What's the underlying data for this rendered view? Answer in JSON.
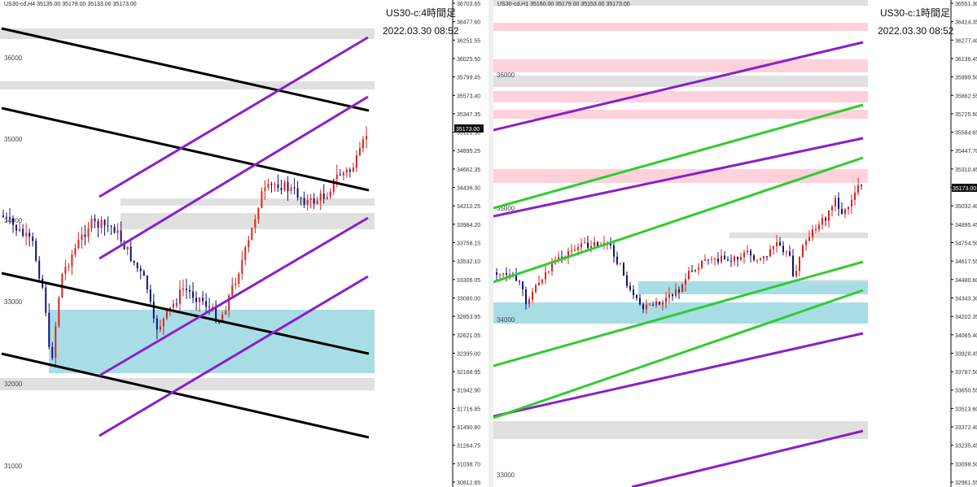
{
  "left": {
    "symbol_header": "US30-cd,H4  35135.00 35179.00 35133.00 35173.00",
    "title": "US30-c:4時間足",
    "timestamp": "2022.03.30 08:52",
    "bid_label": "35173.00",
    "y_axis_ticks": [
      "36703.65",
      "36477.60",
      "36251.55",
      "36025.50",
      "35799.45",
      "35573.40",
      "35347.35",
      "35121.30",
      "34895.25",
      "34662.35",
      "34436.30",
      "34210.25",
      "33984.20",
      "33758.15",
      "33532.10",
      "33306.05",
      "33080.00",
      "32853.95",
      "32621.05",
      "32395.00",
      "32168.95",
      "31942.90",
      "31716.85",
      "31490.80",
      "31264.75",
      "31038.70",
      "30812.65"
    ],
    "round_levels": [
      "36000",
      "35000",
      "34000",
      "33000",
      "32000",
      "31000"
    ]
  },
  "right": {
    "symbol_header": "US30-cd,H1  35160.00 35179.00 35153.00 35173.00",
    "title": "US30-c:1時間足",
    "timestamp": "2022.03.30 08:52",
    "bid_label": "35173.00",
    "y_axis_ticks": [
      "36551.30",
      "36414.35",
      "36277.40",
      "36136.45",
      "35999.50",
      "35862.55",
      "35725.60",
      "35584.65",
      "35447.70",
      "35310.45",
      "35173.00",
      "35032.40",
      "34895.45",
      "34754.50",
      "34617.55",
      "34480.60",
      "34343.30",
      "34202.35",
      "34065.40",
      "33928.45",
      "33787.50",
      "33650.55",
      "33513.60",
      "33372.40",
      "33235.45",
      "33098.50",
      "32961.55"
    ],
    "round_levels": [
      "36000",
      "35000",
      "34000",
      "33000"
    ]
  },
  "colors": {
    "bull_candle": "#e0201e",
    "bear_candle": "#10107a",
    "trendline_black": "#000000",
    "channel_purple": "#8a1fc8",
    "channel_green": "#2fcc2f",
    "zone_gray": "#e0e0e0",
    "zone_pink": "#ffd1dc",
    "zone_cyan": "#a8dde6"
  }
}
